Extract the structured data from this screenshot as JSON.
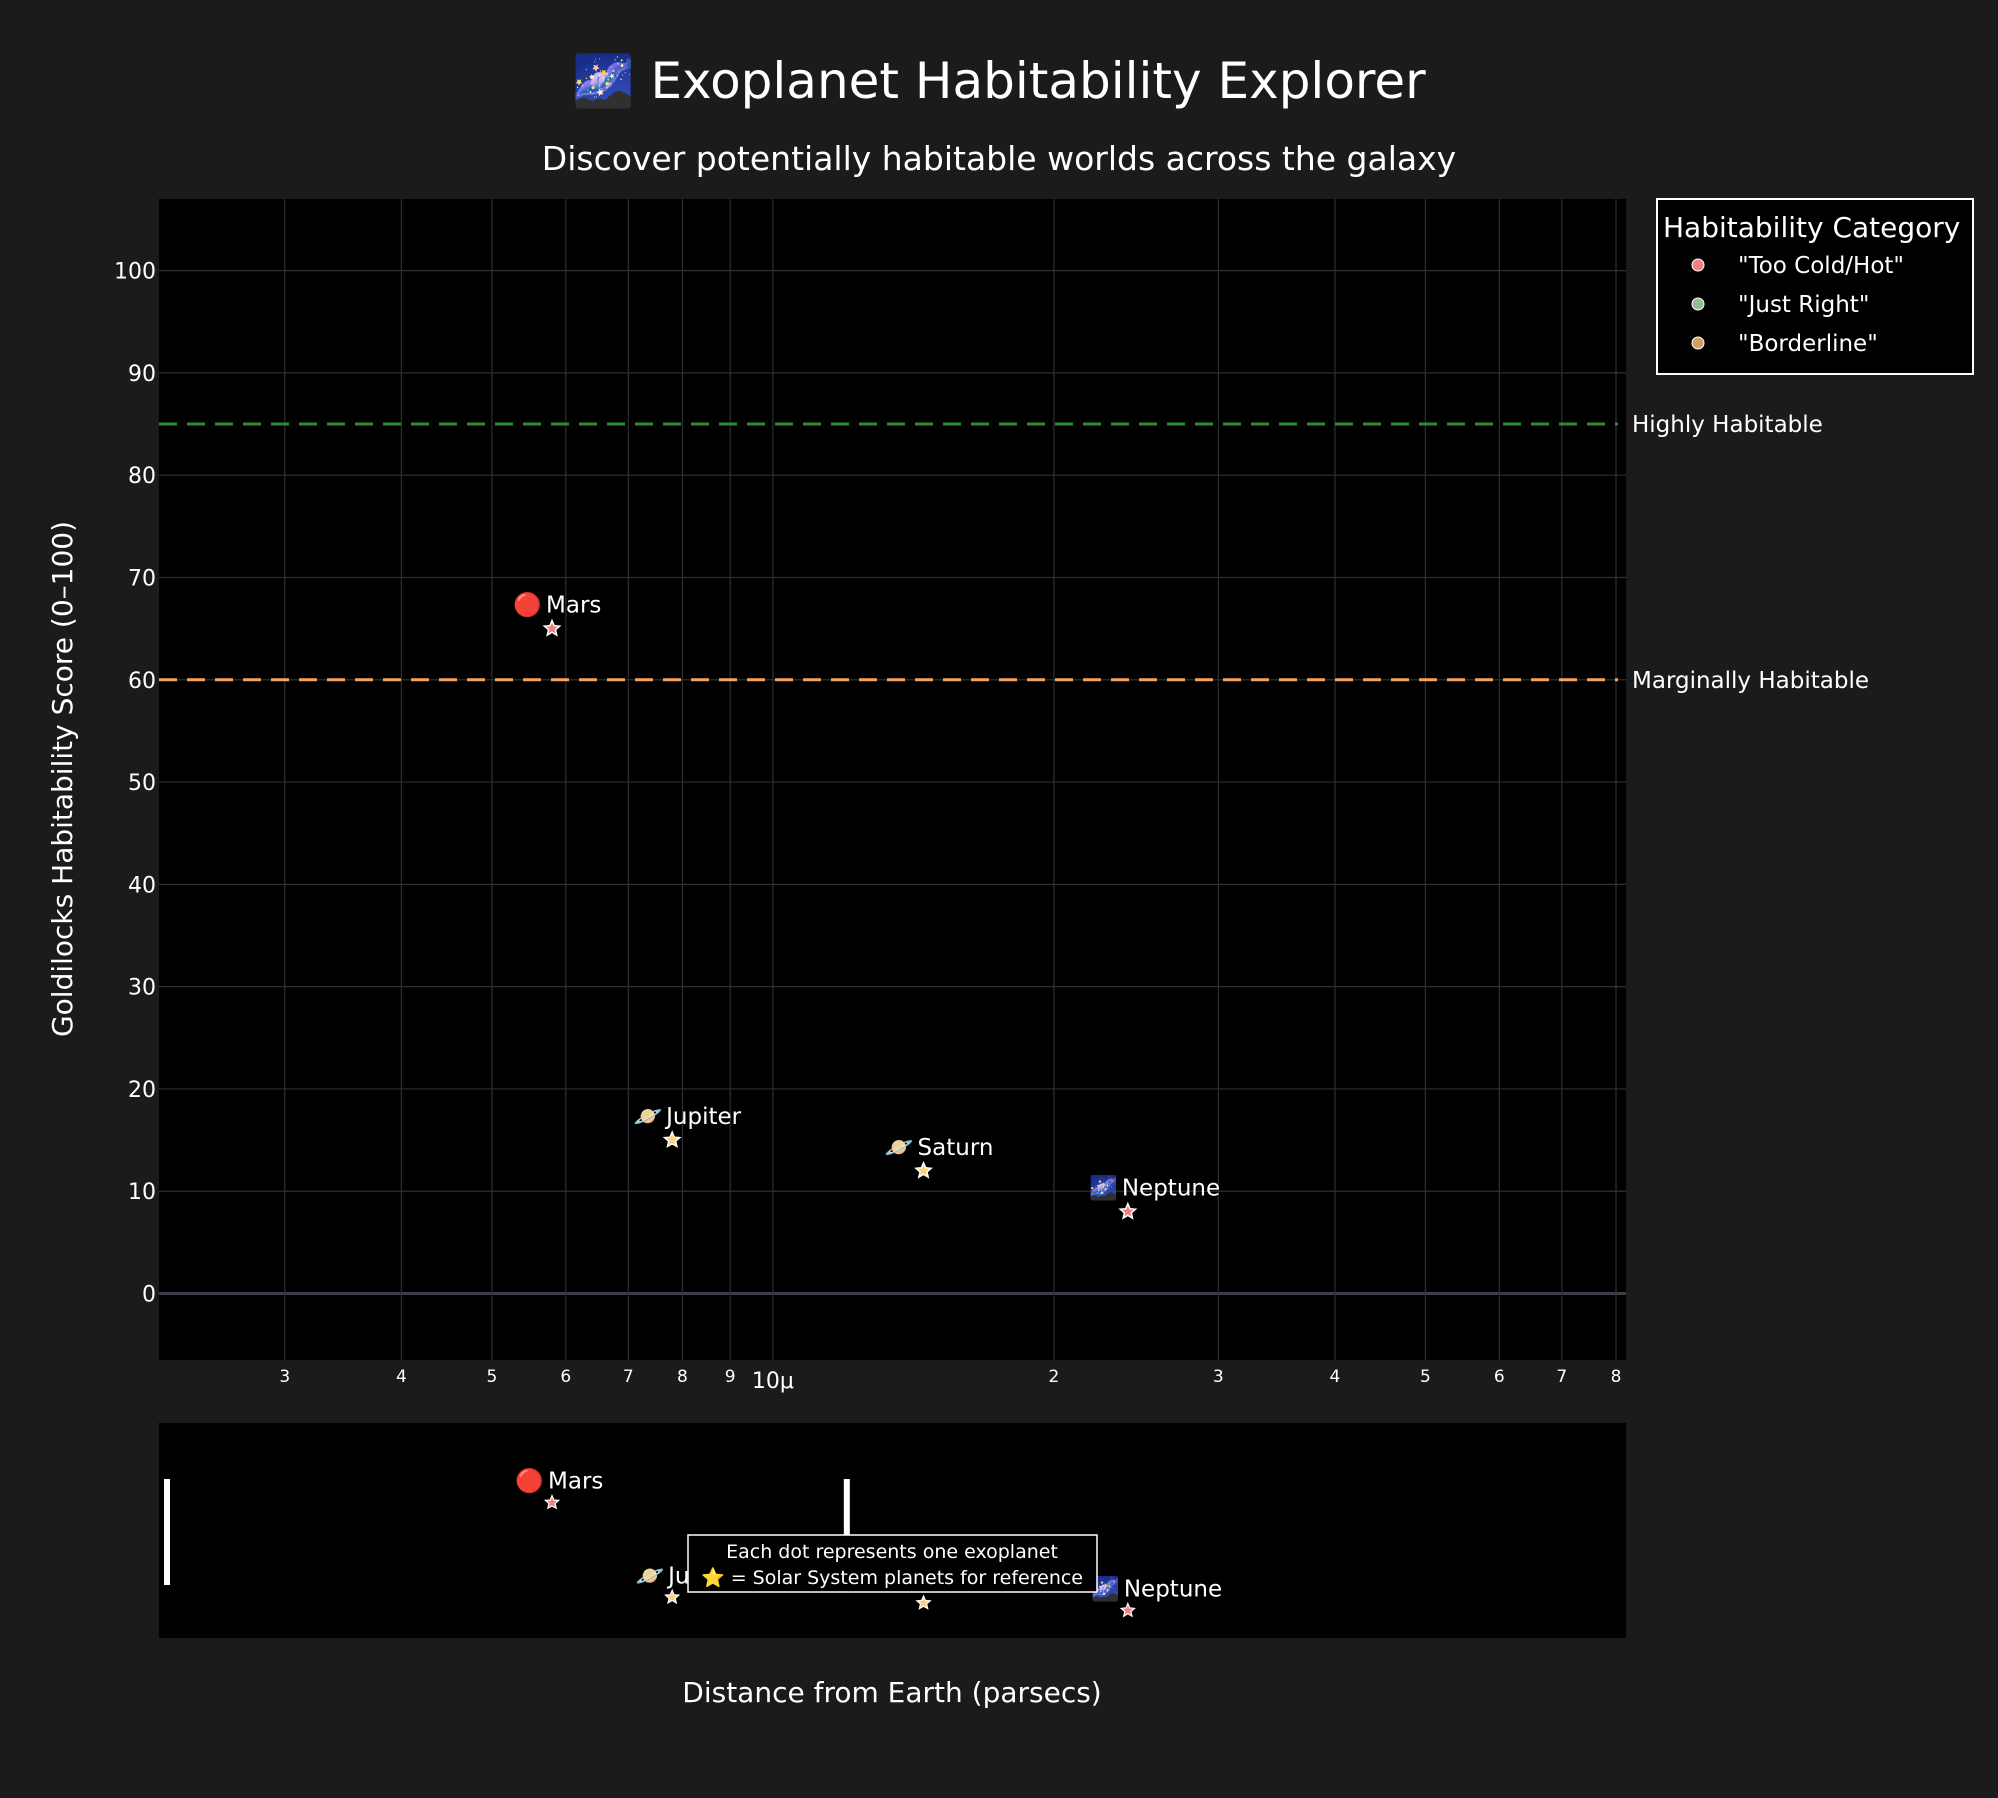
{
  "colors": {
    "background": "#1b1b1b",
    "plot_bg": "#000000",
    "grid": "#2b2f36",
    "highly_line": "#2e8b2e",
    "marginal_line": "#f4a460",
    "too_cold_hot": "#f08080",
    "just_right": "#90c090",
    "borderline": "#d2a060",
    "solar_star": "#ffd27a"
  },
  "chart_data": {
    "type": "scatter",
    "title": "🌌 Exoplanet Habitability Explorer",
    "subtitle": "Discover potentially habitable worlds across the galaxy",
    "xlabel": "Distance from Earth (parsecs)",
    "ylabel": "Goldilocks Habitability Score (0–100)",
    "x_scale": "log",
    "xlim": [
      2.2e-06,
      8.2e-05
    ],
    "ylim": [
      -6.5,
      107
    ],
    "x_ticks": [
      {
        "value": 3e-06,
        "label": "3"
      },
      {
        "value": 4e-06,
        "label": "4"
      },
      {
        "value": 5e-06,
        "label": "5"
      },
      {
        "value": 6e-06,
        "label": "6"
      },
      {
        "value": 7e-06,
        "label": "7"
      },
      {
        "value": 8e-06,
        "label": "8"
      },
      {
        "value": 9e-06,
        "label": "9"
      },
      {
        "value": 1e-05,
        "label": "10μ"
      },
      {
        "value": 2e-05,
        "label": "2"
      },
      {
        "value": 3e-05,
        "label": "3"
      },
      {
        "value": 4e-05,
        "label": "4"
      },
      {
        "value": 5e-05,
        "label": "5"
      },
      {
        "value": 6e-05,
        "label": "6"
      },
      {
        "value": 7e-05,
        "label": "7"
      },
      {
        "value": 8e-05,
        "label": "8"
      }
    ],
    "y_ticks": [
      0,
      10,
      20,
      30,
      40,
      50,
      60,
      70,
      80,
      90,
      100
    ],
    "grid": true,
    "reference_lines": [
      {
        "y": 85,
        "label": "Highly Habitable",
        "color_key": "highly_line"
      },
      {
        "y": 60,
        "label": "Marginally Habitable",
        "color_key": "marginal_line"
      }
    ],
    "legend": {
      "title": "Habitability Category",
      "placement": "top-right",
      "items": [
        {
          "label": "\"Too Cold/Hot\"",
          "color_key": "too_cold_hot"
        },
        {
          "label": "\"Just Right\"",
          "color_key": "just_right"
        },
        {
          "label": "\"Borderline\"",
          "color_key": "borderline"
        }
      ]
    },
    "series": [
      {
        "points": [
          {
            "name": "Mars",
            "icon": "🔴",
            "x": 5.8e-06,
            "y": 65,
            "star_color_key": "too_cold_hot"
          },
          {
            "name": "Jupiter",
            "icon": "🪐",
            "x": 7.8e-06,
            "y": 15,
            "star_color_key": "solar_star"
          },
          {
            "name": "Saturn",
            "icon": "🪐",
            "x": 1.45e-05,
            "y": 12,
            "star_color_key": "solar_star"
          },
          {
            "name": "Neptune",
            "icon": "🌌",
            "x": 2.4e-05,
            "y": 8,
            "star_color_key": "too_cold_hot"
          }
        ]
      }
    ],
    "rangeslider": {
      "shown": true,
      "window_x": [
        2.2e-06,
        1.2e-05
      ]
    },
    "annotation": {
      "line1": "Each dot represents one exoplanet",
      "line2": "⭐ = Solar System planets for reference"
    }
  }
}
